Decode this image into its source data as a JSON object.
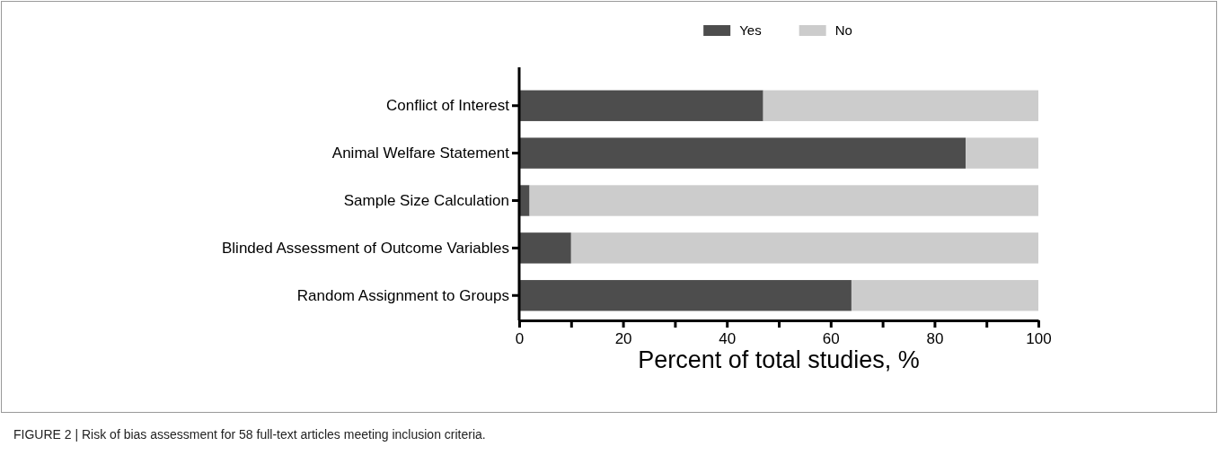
{
  "chart_data": {
    "type": "bar",
    "orientation": "horizontal",
    "stacked": true,
    "categories": [
      "Conflict of Interest",
      "Animal Welfare Statement",
      "Sample Size Calculation",
      "Blinded Assessment of Outcome Variables",
      "Random Assignment to Groups"
    ],
    "series": [
      {
        "name": "Yes",
        "color": "#4d4d4d",
        "values": [
          47,
          86,
          2,
          10,
          64
        ]
      },
      {
        "name": "No",
        "color": "#cccccc",
        "values": [
          53,
          14,
          98,
          90,
          36
        ]
      }
    ],
    "xlim": [
      0,
      100
    ],
    "xticks": [
      0,
      {
        "value": 10,
        "label": null
      },
      20,
      {
        "value": 30,
        "label": null
      },
      40,
      {
        "value": 50,
        "label": null
      },
      60,
      {
        "value": 70,
        "label": null
      },
      80,
      {
        "value": 90,
        "label": null
      },
      100
    ],
    "xlabel": "Percent of total studies, %",
    "legend": "top",
    "grid": false,
    "annotations": [
      "FIGURE 2 | Risk of bias assessment for 58 full-text articles meeting inclusion criteria."
    ]
  }
}
